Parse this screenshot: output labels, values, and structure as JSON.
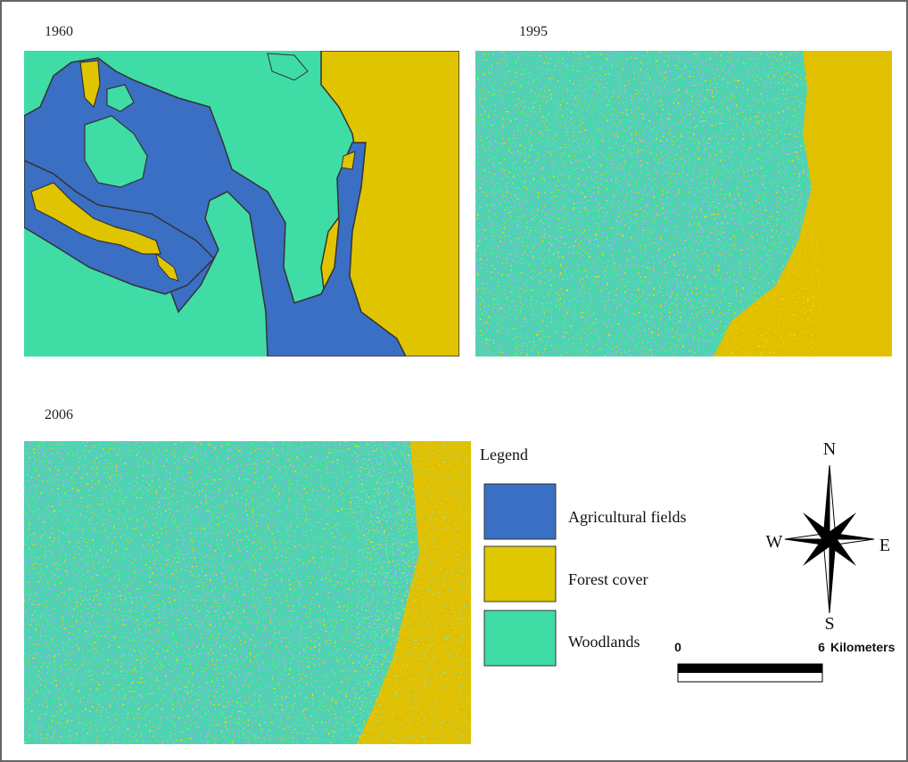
{
  "panels": [
    {
      "label": "1960"
    },
    {
      "label": "1995"
    },
    {
      "label": "2006"
    }
  ],
  "legend": {
    "title": "Legend",
    "items": [
      "Agricultural fields",
      "Forest cover",
      "Woodlands"
    ]
  },
  "compass": {
    "n": "N",
    "s": "S",
    "w": "W",
    "e": "E"
  },
  "scale": {
    "start": "0",
    "end": "6",
    "unit": "Kilometers"
  }
}
